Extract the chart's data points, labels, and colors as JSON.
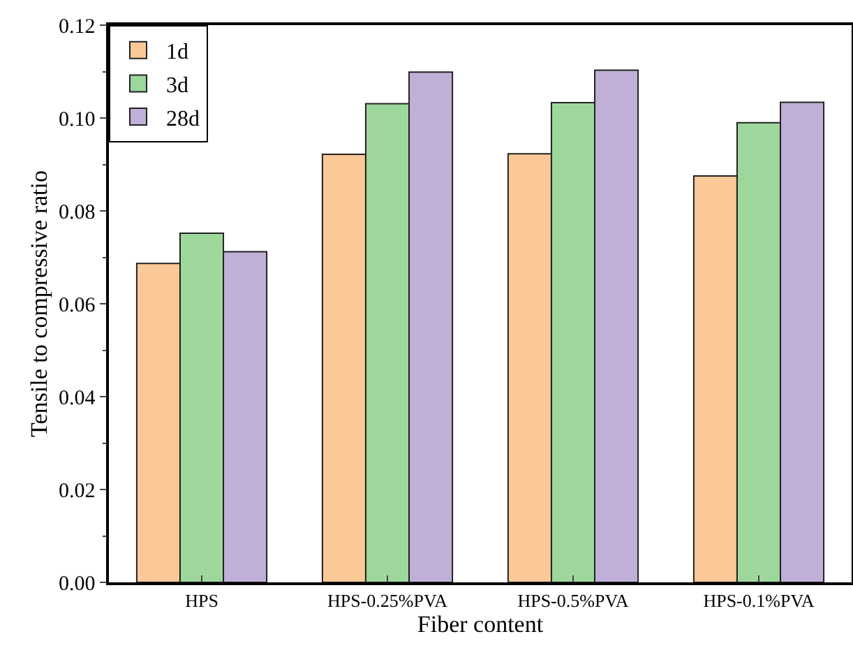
{
  "chart_data": {
    "type": "bar",
    "xlabel": "Fiber content",
    "ylabel": "Tensile to compressive ratio",
    "categories": [
      "HPS",
      "HPS-0.25%PVA",
      "HPS-0.5%PVA",
      "HPS-0.1%PVA"
    ],
    "series": [
      {
        "name": "1d",
        "color": "#fbc897",
        "values": [
          0.0687,
          0.0922,
          0.0923,
          0.0875
        ]
      },
      {
        "name": "3d",
        "color": "#9dd79b",
        "values": [
          0.0752,
          0.1031,
          0.1033,
          0.099
        ]
      },
      {
        "name": "28d",
        "color": "#c0b0d8",
        "values": [
          0.0712,
          0.1099,
          0.1103,
          0.1034
        ]
      }
    ],
    "ylim": [
      0,
      0.12
    ],
    "yticks": [
      {
        "value": 0,
        "label": "0.00"
      },
      {
        "value": 0.02,
        "label": "0.02"
      },
      {
        "value": 0.04,
        "label": "0.04"
      },
      {
        "value": 0.06,
        "label": "0.06"
      },
      {
        "value": 0.08,
        "label": "0.08"
      },
      {
        "value": 0.1,
        "label": "0.10"
      },
      {
        "value": 0.12,
        "label": "0.12"
      }
    ],
    "grid": false,
    "legend": "top left"
  }
}
